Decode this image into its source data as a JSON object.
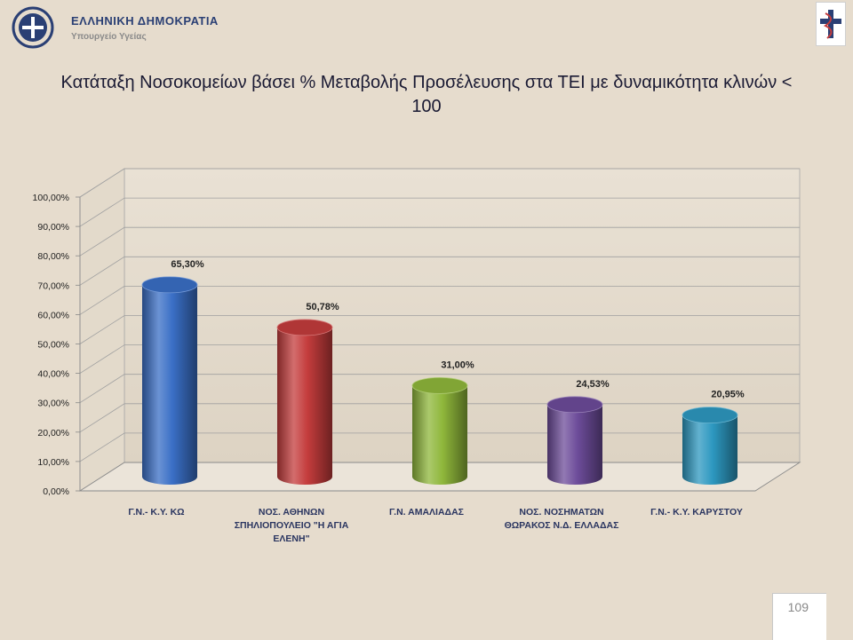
{
  "header": {
    "org_line1": "ΕΛΛΗΝΙΚΗ ΔΗΜΟΚΡΑΤΙΑ",
    "org_line2": "Υπουργείο Υγείας"
  },
  "page_number": "109",
  "colors": {
    "background": "#e6dccd",
    "bar1": "#3a6fc6",
    "bar2": "#c43c3c",
    "bar3": "#8fb73b",
    "bar4": "#6d4c9a",
    "bar5": "#2d98c0"
  },
  "chart_data": {
    "type": "bar",
    "title": "Κατάταξη Νοσοκομείων βάσει % Μεταβολής Προσέλευσης στα ΤΕΙ με δυναμικότητα κλινών < 100",
    "categories": [
      [
        "Γ.Ν.- Κ.Υ. ΚΩ"
      ],
      [
        "ΝΟΣ. ΑΘΗΝΩΝ",
        "ΣΠΗΛΙΟΠΟΥΛΕΙΟ \"Η ΑΓΙΑ",
        "ΕΛΕΝΗ\""
      ],
      [
        "Γ.Ν. ΑΜΑΛΙΑΔΑΣ"
      ],
      [
        "ΝΟΣ. ΝΟΣΗΜΑΤΩΝ",
        "ΘΩΡΑΚΟΣ Ν.Δ. ΕΛΛΑΔΑΣ"
      ],
      [
        "Γ.Ν.- Κ.Υ. ΚΑΡΥΣΤΟΥ"
      ]
    ],
    "values": [
      65.3,
      50.78,
      31.0,
      24.53,
      20.95
    ],
    "data_labels": [
      "65,30%",
      "50,78%",
      "31,00%",
      "24,53%",
      "20,95%"
    ],
    "yticks": [
      "0,00%",
      "10,00%",
      "20,00%",
      "30,00%",
      "40,00%",
      "50,00%",
      "60,00%",
      "70,00%",
      "80,00%",
      "90,00%",
      "100,00%"
    ],
    "ylim": [
      0,
      100
    ],
    "grid": true,
    "style": "3d-cylinder"
  }
}
